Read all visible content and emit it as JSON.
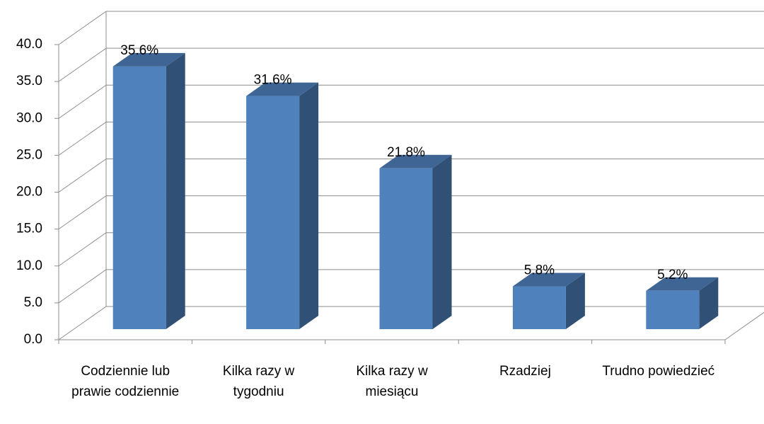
{
  "chart_data": {
    "type": "bar",
    "categories": [
      "Codziennie lub prawie codziennie",
      "Kilka razy w tygodniu",
      "Kilka razy w miesiącu",
      "Rzadziej",
      "Trudno powiedzieć"
    ],
    "values": [
      35.6,
      31.6,
      21.8,
      5.8,
      5.2
    ],
    "value_labels": [
      "35.6%",
      "31.6%",
      "21.8%",
      "5.8%",
      "5.2%"
    ],
    "color": "#4f81bd",
    "ylim": [
      0,
      40
    ],
    "yticks": [
      {
        "value": 0,
        "label": "0.0"
      },
      {
        "value": 5,
        "label": "5.0"
      },
      {
        "value": 10,
        "label": "10.0"
      },
      {
        "value": 15,
        "label": "15.0"
      },
      {
        "value": 20,
        "label": "20.0"
      },
      {
        "value": 25,
        "label": "25.0"
      },
      {
        "value": 30,
        "label": "30.0"
      },
      {
        "value": 35,
        "label": "35.0"
      },
      {
        "value": 40,
        "label": "40.0"
      }
    ],
    "grid": true
  }
}
